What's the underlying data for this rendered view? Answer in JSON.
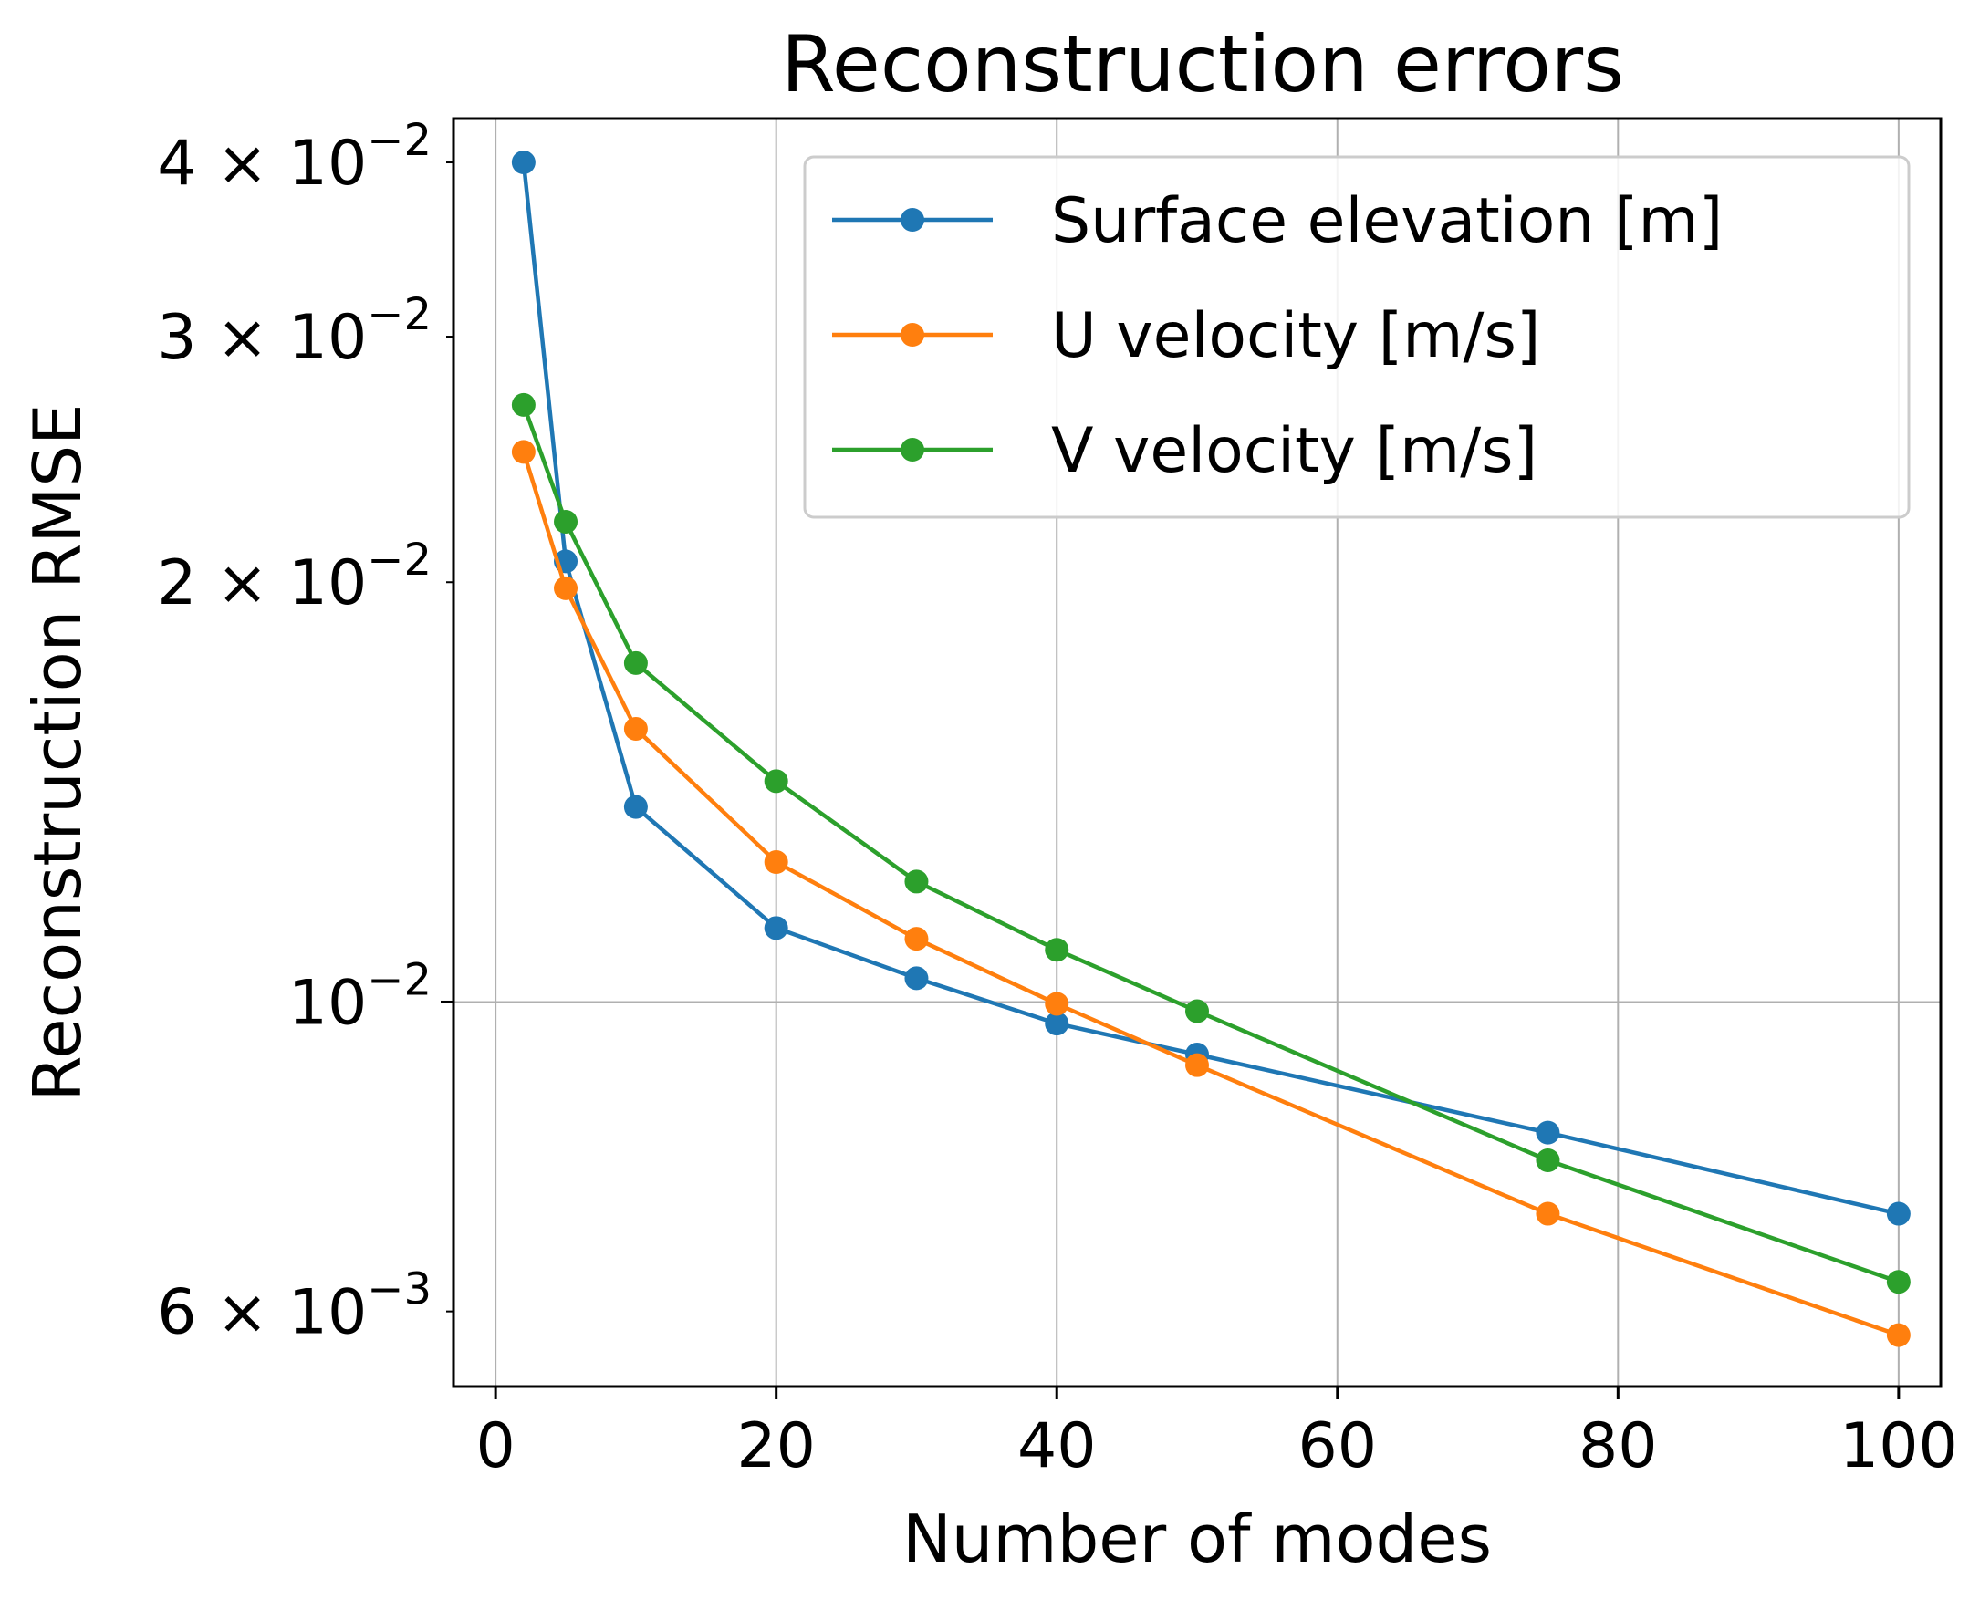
{
  "chart_data": {
    "type": "line",
    "title": "Reconstruction errors",
    "xlabel": "Number of modes",
    "ylabel": "Reconstruction RMSE",
    "yscale": "log",
    "grid": true,
    "legend_position": "top-right",
    "xlim": [
      -3,
      103
    ],
    "ylim": [
      0.0053,
      0.043
    ],
    "x": [
      2,
      5,
      10,
      20,
      30,
      40,
      50,
      75,
      100
    ],
    "x_ticks": [
      {
        "value": 0,
        "label": "0"
      },
      {
        "value": 20,
        "label": "20"
      },
      {
        "value": 40,
        "label": "40"
      },
      {
        "value": 60,
        "label": "60"
      },
      {
        "value": 80,
        "label": "80"
      },
      {
        "value": 100,
        "label": "100"
      }
    ],
    "y_ticks": [
      {
        "value": 0.04,
        "mantissa": "4 × 10",
        "exponent": "−2"
      },
      {
        "value": 0.03,
        "mantissa": "3 × 10",
        "exponent": "−2"
      },
      {
        "value": 0.02,
        "mantissa": "2 × 10",
        "exponent": "−2"
      },
      {
        "value": 0.01,
        "mantissa": "10",
        "exponent": "−2"
      },
      {
        "value": 0.006,
        "mantissa": "6 × 10",
        "exponent": "−3"
      }
    ],
    "series": [
      {
        "name": "Surface elevation [m]",
        "color": "#1f77b4",
        "values": [
          0.04,
          0.0207,
          0.0138,
          0.0113,
          0.0104,
          0.00965,
          0.00917,
          0.00806,
          0.00705
        ]
      },
      {
        "name": "U velocity [m/s]",
        "color": "#ff7f0e",
        "values": [
          0.0248,
          0.0198,
          0.0157,
          0.0126,
          0.0111,
          0.00997,
          0.00901,
          0.00705,
          0.00577
        ]
      },
      {
        "name": "V velocity [m/s]",
        "color": "#2ca02c",
        "values": [
          0.0268,
          0.0221,
          0.0175,
          0.0144,
          0.0122,
          0.0109,
          0.00985,
          0.0077,
          0.0063
        ]
      }
    ]
  }
}
